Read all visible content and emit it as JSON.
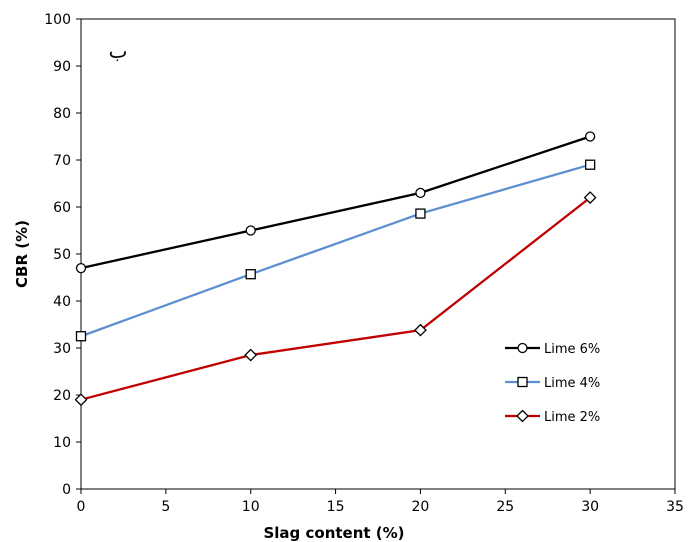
{
  "chart_data": {
    "type": "line",
    "title": "",
    "xlabel": "Slag content (%)",
    "ylabel": "CBR (%)",
    "annotation": "ب",
    "xlim": [
      0,
      35
    ],
    "ylim": [
      0,
      100
    ],
    "xticks": [
      "0",
      "5",
      "10",
      "15",
      "20",
      "25",
      "30",
      "35"
    ],
    "yticks": [
      "0",
      "10",
      "20",
      "30",
      "40",
      "50",
      "60",
      "70",
      "80",
      "90",
      "100"
    ],
    "grid": false,
    "legend_position": "right",
    "x": [
      0,
      10,
      20,
      30
    ],
    "series": [
      {
        "name": "Lime 6%",
        "values": [
          47,
          55,
          63,
          75
        ],
        "color": "#000000",
        "marker": "circle"
      },
      {
        "name": "Lime 4%",
        "values": [
          32.5,
          45.7,
          58.6,
          69
        ],
        "color": "#5b8fd0",
        "marker": "square"
      },
      {
        "name": "Lime 2%",
        "values": [
          19,
          28.5,
          33.8,
          62
        ],
        "color": "#c00000",
        "marker": "diamond"
      }
    ]
  }
}
